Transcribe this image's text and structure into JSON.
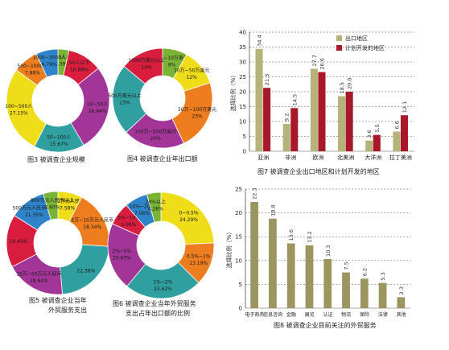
{
  "colors": {
    "export": "#b5b37a",
    "plan": "#a8182a",
    "bar8": "#9b9560",
    "grid": "#555555",
    "palette": [
      "#2f9f9f",
      "#a23597",
      "#ee7d1f",
      "#eedd18",
      "#7ab434",
      "#d81d3f",
      "#2f83c8",
      "#d2c9e4"
    ]
  },
  "chart_data": [
    {
      "type": "pie",
      "caption": "图3  被调查企业规模",
      "slices": [
        {
          "label": "3000人以上",
          "pct_text": "3.39%",
          "value": 3.39,
          "color": "#7ab434"
        },
        {
          "label": "50人以下",
          "pct_text": "10.68%",
          "value": 10.68,
          "color": "#d81d3f"
        },
        {
          "label": "10~50人",
          "pct_text": "26.94%",
          "value": 26.94,
          "color": "#a23597"
        },
        {
          "label": "50~100人",
          "pct_text": "15.67%",
          "value": 15.67,
          "color": "#2f9f9f"
        },
        {
          "label": "100~500人",
          "pct_text": "27.15%",
          "value": 27.15,
          "color": "#eedd18"
        },
        {
          "label": "500~1000人",
          "pct_text": "7.88%",
          "value": 7.88,
          "color": "#ee7d1f"
        },
        {
          "label": "1000~3000人",
          "pct_text": "6.79%",
          "value": 6.79,
          "color": "#2f83c8"
        }
      ]
    },
    {
      "type": "pie",
      "caption": "图4  被调查企业年出口额",
      "slices": [
        {
          "label": "1万~10万美元",
          "pct_text": "8%",
          "value": 8,
          "color": "#7ab434"
        },
        {
          "label": "10万~50万美元",
          "pct_text": "12%",
          "value": 12,
          "color": "#eedd18"
        },
        {
          "label": "50万~100万美元",
          "pct_text": "23%",
          "value": 23,
          "color": "#ee7d1f"
        },
        {
          "label": "100万~500万美元",
          "pct_text": "20%",
          "value": 20,
          "color": "#a23597"
        },
        {
          "label": "500万美元以上",
          "pct_text": "23%",
          "value": 23,
          "color": "#2f9f9f"
        },
        {
          "label": "1000万美元以上",
          "pct_text": "14%",
          "value": 14,
          "color": "#d81d3f"
        }
      ]
    },
    {
      "type": "pie",
      "caption_lines": [
        "图5  被调查企业当年",
        "外贸服务支出"
      ],
      "slices": [
        {
          "label": "0~1万元人民币",
          "pct_text": "7.58%",
          "value": 7.58,
          "color": "#eedd18"
        },
        {
          "label": "5万~10万元人民币",
          "pct_text": "18.34%",
          "value": 18.34,
          "color": "#ee7d1f"
        },
        {
          "label": "",
          "pct_text": "22.38%",
          "value": 22.38,
          "color": "#2f9f9f"
        },
        {
          "label": "10万~50万元人民币",
          "pct_text": "18.64%",
          "value": 18.64,
          "color": "#a23597"
        },
        {
          "label": "",
          "pct_text": "16.45%",
          "value": 16.45,
          "color": "#d81d3f"
        },
        {
          "label": "500万元人民币以上",
          "pct_text": "11.35%",
          "value": 11.35,
          "color": "#2f83c8"
        },
        {
          "label": "800万元人民币以上",
          "pct_text": "4.60%",
          "value": 4.6,
          "color": "#7ab434"
        }
      ]
    },
    {
      "type": "pie",
      "caption_lines": [
        "图6  被调查企业当年外贸服务",
        "支出占年出口额的比例"
      ],
      "slices": [
        {
          "label": "0~0.5%",
          "pct_text": "24.29%",
          "value": 24.29,
          "color": "#eedd18"
        },
        {
          "label": "0.5%~1%",
          "pct_text": "13.19%",
          "value": 13.19,
          "color": "#ee7d1f"
        },
        {
          "label": "1%~2%",
          "pct_text": "23.62%",
          "value": 23.62,
          "color": "#2f9f9f"
        },
        {
          "label": "2%~5%",
          "pct_text": "20.67%",
          "value": 20.67,
          "color": "#a23597"
        },
        {
          "label": "5%~10%",
          "pct_text": "6.99%",
          "value": 6.99,
          "color": "#d81d3f"
        },
        {
          "label": "10%~20%",
          "pct_text": "7.06%",
          "value": 7.06,
          "color": "#2f83c8"
        },
        {
          "label": "20%以上",
          "pct_text": "4.28%",
          "value": 4.28,
          "color": "#7ab434"
        }
      ]
    },
    {
      "type": "bar",
      "caption": "图7  被调查企业出口地区和计划开发的地区",
      "ylabel": "选择比例（%）",
      "ylim": [
        0,
        40
      ],
      "yticks": [
        0,
        5,
        10,
        15,
        20,
        25,
        30,
        35,
        40
      ],
      "grid": true,
      "legend": "top-right",
      "categories": [
        "亚洲",
        "非洲",
        "欧洲",
        "北美洲",
        "大洋洲",
        "拉丁美洲"
      ],
      "series": [
        {
          "name": "出口地区",
          "values": [
            34.4,
            9.2,
            27.7,
            18.5,
            3.6,
            6.6
          ],
          "labels": [
            "34.4",
            "9.2",
            "27.7",
            "18.5",
            "3.6",
            "6.6"
          ]
        },
        {
          "name": "计划开发的地区",
          "values": [
            21.3,
            14.5,
            26.6,
            20.0,
            5.5,
            12.1
          ],
          "labels": [
            "21.3",
            "14.5",
            "26.6",
            "20.0",
            "5.5",
            "12.1"
          ]
        }
      ]
    },
    {
      "type": "bar",
      "caption": "图8  被调查企业目前关注的外贸服务",
      "ylabel": "选择比例（%）",
      "ylim": [
        0,
        25
      ],
      "yticks": [
        0,
        5,
        10,
        15,
        20,
        25
      ],
      "grid": true,
      "categories": [
        "电子商务",
        "信息咨询",
        "金融",
        "展览",
        "认证",
        "物流",
        "保险",
        "法律",
        "其他"
      ],
      "values": [
        22.3,
        18.8,
        13.6,
        13.2,
        10.3,
        7.5,
        6.2,
        5.3,
        2.3
      ],
      "labels": [
        "22.3",
        "18.8",
        "13.6",
        "13.2",
        "10.3",
        "7.5",
        "6.2",
        "5.3",
        "2.3"
      ]
    }
  ]
}
